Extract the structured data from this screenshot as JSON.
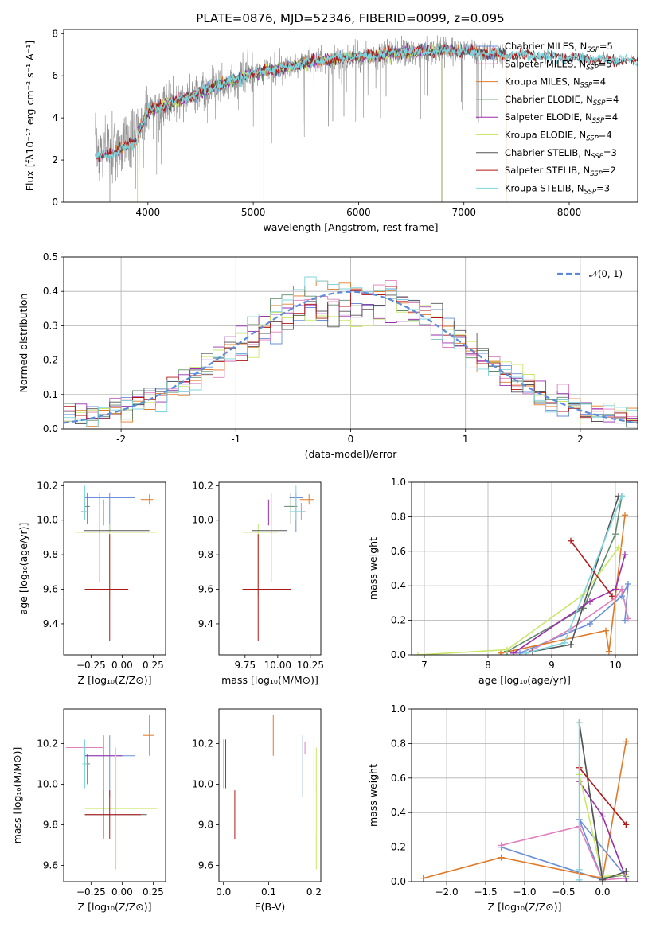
{
  "colors": {
    "Chabrier MILES": "#6a8fd8",
    "Salpeter MILES": "#e07fbe",
    "Kroupa MILES": "#e07a28",
    "Chabrier ELODIE": "#5f8a6a",
    "Salpeter ELODIE": "#9b2fae",
    "Kroupa ELODIE": "#c9e86a",
    "Chabrier STELIB": "#555555",
    "Salpeter STELIB": "#b01818",
    "Kroupa STELIB": "#7ed4dc",
    "data": "#8a8a8a",
    "normal": "#5b8bd8"
  },
  "chart_data": [
    {
      "id": "spectrum",
      "type": "line",
      "title": "PLATE=0876, MJD=52346, FIBERID=0099, z=0.095",
      "xlabel": "wavelength [Angstrom, rest frame]",
      "ylabel": "Flux [fλ10⁻¹⁷ erg cm⁻² s⁻¹ A⁻¹]",
      "xlim": [
        3200,
        8650
      ],
      "ylim": [
        0,
        8.2
      ],
      "xticks": [
        4000,
        5000,
        6000,
        7000,
        8000
      ],
      "yticks": [
        0,
        2,
        4,
        6,
        8
      ],
      "legend_position": "upper-right",
      "legend": [
        {
          "label": "Chabrier MILES, N",
          "sub": "SSP",
          "tail": "=5",
          "key": "Chabrier MILES"
        },
        {
          "label": "Salpeter MILES, N",
          "sub": "SSP",
          "tail": "=5",
          "key": "Salpeter MILES"
        },
        {
          "label": "Kroupa MILES, N",
          "sub": "SSP",
          "tail": "=4",
          "key": "Kroupa MILES"
        },
        {
          "label": "Chabrier ELODIE, N",
          "sub": "SSP",
          "tail": "=4",
          "key": "Chabrier ELODIE"
        },
        {
          "label": "Salpeter ELODIE, N",
          "sub": "SSP",
          "tail": "=4",
          "key": "Salpeter ELODIE"
        },
        {
          "label": "Kroupa ELODIE, N",
          "sub": "SSP",
          "tail": "=4",
          "key": "Kroupa ELODIE"
        },
        {
          "label": "Chabrier STELIB, N",
          "sub": "SSP",
          "tail": "=3",
          "key": "Chabrier STELIB"
        },
        {
          "label": "Salpeter STELIB, N",
          "sub": "SSP",
          "tail": "=2",
          "key": "Salpeter STELIB"
        },
        {
          "label": "Kroupa STELIB, N",
          "sub": "SSP",
          "tail": "=3",
          "key": "Kroupa STELIB"
        }
      ],
      "continuum_x": [
        3500,
        3700,
        3900,
        4000,
        4200,
        4400,
        4600,
        4800,
        5000,
        5200,
        5400,
        5600,
        5800,
        6000,
        6200,
        6400,
        6600,
        6800,
        7000,
        7200,
        7400,
        7600,
        7800,
        8000,
        8200,
        8400,
        8650
      ],
      "continuum_y": [
        2.4,
        2.7,
        3.2,
        4.3,
        4.7,
        5.0,
        5.4,
        5.8,
        6.1,
        6.3,
        6.5,
        6.7,
        6.8,
        6.9,
        7.0,
        7.1,
        7.15,
        7.2,
        7.2,
        7.1,
        7.0,
        7.0,
        6.9,
        6.85,
        6.8,
        6.75,
        6.7
      ],
      "data_range": [
        3500,
        7400
      ],
      "model_ranges": {
        "MILES": [
          3550,
          7400
        ],
        "ELODIE": [
          3900,
          6800
        ],
        "STELIB": [
          3500,
          8650
        ]
      }
    },
    {
      "id": "residuals",
      "type": "histogram",
      "xlabel": "(data-model)/error",
      "ylabel": "Normed distribution",
      "xlim": [
        -2.5,
        2.5
      ],
      "ylim": [
        0,
        0.5
      ],
      "xticks": [
        -2,
        -1,
        0,
        1,
        2
      ],
      "yticks": [
        0.0,
        0.1,
        0.2,
        0.3,
        0.4,
        0.5
      ],
      "grid": true,
      "legend_position": "upper-right",
      "legend": [
        {
          "label": "𝒩(0, 1)",
          "key": "normal"
        }
      ],
      "bin_width": 0.1
    },
    {
      "id": "age_vs_Z",
      "type": "errorbar",
      "xlabel": "Z [log₁₀(Z/Z⊙)]",
      "ylabel": "age  [log₁₀(age/yr)]",
      "xlim": [
        -0.47,
        0.35
      ],
      "ylim": [
        9.22,
        10.22
      ],
      "xticks": [
        -0.25,
        0.0,
        0.25
      ],
      "xticklabels": [
        "−0.25",
        "0.00",
        "0.25"
      ],
      "yticks": [
        9.4,
        9.6,
        9.8,
        10.0,
        10.2
      ],
      "points": [
        {
          "key": "Chabrier MILES",
          "x": -0.1,
          "xerr": [
            0.2,
            0.2
          ],
          "y": 10.13,
          "yerr": [
            0.2,
            0.03
          ]
        },
        {
          "key": "Salpeter MILES",
          "x": -0.3,
          "xerr": [
            0.03,
            0.03
          ],
          "y": 10.05,
          "yerr": [
            0.05,
            0.05
          ]
        },
        {
          "key": "Kroupa MILES",
          "x": 0.22,
          "xerr": [
            0.07,
            0.03
          ],
          "y": 10.12,
          "yerr": [
            0.03,
            0.03
          ]
        },
        {
          "key": "Chabrier ELODIE",
          "x": -0.28,
          "xerr": [
            0.02,
            0.02
          ],
          "y": 10.08,
          "yerr": [
            0.1,
            0.08
          ]
        },
        {
          "key": "Salpeter ELODIE",
          "x": -0.15,
          "xerr": [
            0.35,
            0.35
          ],
          "y": 10.07,
          "yerr": [
            0.1,
            0.05
          ]
        },
        {
          "key": "Kroupa ELODIE",
          "x": -0.1,
          "xerr": [
            0.28,
            0.38
          ],
          "y": 9.93,
          "yerr": [
            0.38,
            0.05
          ]
        },
        {
          "key": "Chabrier STELIB",
          "x": -0.18,
          "xerr": [
            0.13,
            0.4
          ],
          "y": 9.94,
          "yerr": [
            0.3,
            0.22
          ]
        },
        {
          "key": "Salpeter STELIB",
          "x": -0.1,
          "xerr": [
            0.2,
            0.15
          ],
          "y": 9.6,
          "yerr": [
            0.3,
            0.32
          ]
        },
        {
          "key": "Kroupa STELIB",
          "x": -0.3,
          "xerr": [
            0.02,
            0.02
          ],
          "y": 10.05,
          "yerr": [
            0.05,
            0.15
          ]
        }
      ]
    },
    {
      "id": "age_vs_mass",
      "type": "errorbar",
      "xlabel": "mass [log₁₀(M/M⊙)]",
      "xlim": [
        9.55,
        10.33
      ],
      "ylim": [
        9.22,
        10.22
      ],
      "xticks": [
        9.75,
        10.0,
        10.25
      ],
      "xticklabels": [
        "9.75",
        "10.00",
        "10.25"
      ],
      "yticks": [
        9.4,
        9.6,
        9.8,
        10.0,
        10.2
      ],
      "points": [
        {
          "key": "Chabrier MILES",
          "x": 10.14,
          "xerr": [
            0.05,
            0.05
          ],
          "y": 10.13,
          "yerr": [
            0.2,
            0.03
          ]
        },
        {
          "key": "Salpeter MILES",
          "x": 10.18,
          "xerr": [
            0.03,
            0.03
          ],
          "y": 10.05,
          "yerr": [
            0.05,
            0.05
          ]
        },
        {
          "key": "Kroupa MILES",
          "x": 10.24,
          "xerr": [
            0.07,
            0.04
          ],
          "y": 10.12,
          "yerr": [
            0.03,
            0.03
          ]
        },
        {
          "key": "Chabrier ELODIE",
          "x": 10.1,
          "xerr": [
            0.05,
            0.05
          ],
          "y": 10.08,
          "yerr": [
            0.1,
            0.08
          ]
        },
        {
          "key": "Salpeter ELODIE",
          "x": 9.93,
          "xerr": [
            0.15,
            0.22
          ],
          "y": 10.07,
          "yerr": [
            0.1,
            0.05
          ]
        },
        {
          "key": "Kroupa ELODIE",
          "x": 9.85,
          "xerr": [
            0.12,
            0.15
          ],
          "y": 9.93,
          "yerr": [
            0.38,
            0.05
          ]
        },
        {
          "key": "Chabrier STELIB",
          "x": 9.95,
          "xerr": [
            0.15,
            0.12
          ],
          "y": 9.94,
          "yerr": [
            0.3,
            0.22
          ]
        },
        {
          "key": "Salpeter STELIB",
          "x": 9.85,
          "xerr": [
            0.12,
            0.25
          ],
          "y": 9.6,
          "yerr": [
            0.3,
            0.32
          ]
        },
        {
          "key": "Kroupa STELIB",
          "x": 10.14,
          "xerr": [
            0.05,
            0.05
          ],
          "y": 10.05,
          "yerr": [
            0.05,
            0.15
          ]
        }
      ]
    },
    {
      "id": "mass_weight_vs_age",
      "type": "line",
      "xlabel": "age  [log₁₀(age/yr)]",
      "ylabel": "mass weight",
      "xlim": [
        6.8,
        10.35
      ],
      "ylim": [
        0,
        1
      ],
      "xticks": [
        7,
        8,
        9,
        10
      ],
      "yticks": [
        0.0,
        0.2,
        0.4,
        0.6,
        0.8,
        1.0
      ],
      "grid": true,
      "series": [
        {
          "key": "Chabrier MILES",
          "x": [
            8.5,
            9.6,
            10.1,
            10.2,
            10.15
          ],
          "y": [
            0.01,
            0.18,
            0.34,
            0.41,
            0.2
          ]
        },
        {
          "key": "Salpeter MILES",
          "x": [
            8.6,
            9.3,
            10.0,
            10.1,
            10.2
          ],
          "y": [
            0.01,
            0.15,
            0.33,
            0.38,
            0.21
          ]
        },
        {
          "key": "Kroupa MILES",
          "x": [
            8.2,
            9.85,
            9.9,
            10.15
          ],
          "y": [
            0.01,
            0.14,
            0.02,
            0.81
          ]
        },
        {
          "key": "Chabrier ELODIE",
          "x": [
            8.3,
            9.5,
            10.0,
            10.1
          ],
          "y": [
            0.02,
            0.27,
            0.7,
            0.92
          ]
        },
        {
          "key": "Salpeter ELODIE",
          "x": [
            8.4,
            9.6,
            10.0,
            10.15
          ],
          "y": [
            0.01,
            0.31,
            0.38,
            0.58
          ]
        },
        {
          "key": "Kroupa ELODIE",
          "x": [
            6.9,
            8.3,
            9.5,
            10.05
          ],
          "y": [
            0.0,
            0.03,
            0.35,
            0.62
          ]
        },
        {
          "key": "Chabrier STELIB",
          "x": [
            8.7,
            9.3,
            10.05
          ],
          "y": [
            0.02,
            0.06,
            0.92
          ]
        },
        {
          "key": "Salpeter STELIB",
          "x": [
            9.3,
            9.95
          ],
          "y": [
            0.66,
            0.34
          ]
        },
        {
          "key": "Kroupa STELIB",
          "x": [
            8.6,
            9.2,
            10.1
          ],
          "y": [
            0.01,
            0.07,
            0.92
          ]
        }
      ]
    },
    {
      "id": "mass_vs_Z",
      "type": "errorbar",
      "xlabel": "Z [log₁₀(Z/Z⊙)]",
      "ylabel": "mass [log₁₀(M/M⊙)]",
      "xlim": [
        -0.47,
        0.35
      ],
      "ylim": [
        9.52,
        10.37
      ],
      "xticks": [
        -0.25,
        0.0,
        0.25
      ],
      "xticklabels": [
        "−0.25",
        "0.00",
        "0.25"
      ],
      "yticks": [
        9.6,
        9.8,
        10.0,
        10.2
      ],
      "points": [
        {
          "key": "Chabrier MILES",
          "x": -0.1,
          "xerr": [
            0.2,
            0.2
          ],
          "y": 10.14,
          "yerr": [
            0.2,
            0.1
          ]
        },
        {
          "key": "Salpeter MILES",
          "x": -0.3,
          "xerr": [
            0.15,
            0.15
          ],
          "y": 10.18,
          "yerr": [
            0.03,
            0.03
          ]
        },
        {
          "key": "Kroupa MILES",
          "x": 0.22,
          "xerr": [
            0.05,
            0.04
          ],
          "y": 10.24,
          "yerr": [
            0.1,
            0.1
          ]
        },
        {
          "key": "Chabrier ELODIE",
          "x": -0.28,
          "xerr": [
            0.02,
            0.02
          ],
          "y": 10.1,
          "yerr": [
            0.1,
            0.05
          ]
        },
        {
          "key": "Salpeter ELODIE",
          "x": -0.15,
          "xerr": [
            0.15,
            0.15
          ],
          "y": 10.14,
          "yerr": [
            0.4,
            0.1
          ]
        },
        {
          "key": "Kroupa ELODIE",
          "x": -0.05,
          "xerr": [
            0.25,
            0.33
          ],
          "y": 9.88,
          "yerr": [
            0.3,
            0.3
          ]
        },
        {
          "key": "Chabrier STELIB",
          "x": -0.15,
          "xerr": [
            0.15,
            0.35
          ],
          "y": 9.85,
          "yerr": [
            0.12,
            0.12
          ]
        },
        {
          "key": "Salpeter STELIB",
          "x": -0.1,
          "xerr": [
            0.2,
            0.25
          ],
          "y": 9.85,
          "yerr": [
            0.12,
            0.12
          ]
        },
        {
          "key": "Kroupa STELIB",
          "x": -0.3,
          "xerr": [
            0.02,
            0.02
          ],
          "y": 10.1,
          "yerr": [
            0.12,
            0.12
          ]
        }
      ]
    },
    {
      "id": "mass_vs_EBV",
      "type": "errorbar",
      "xlabel": "E(B-V)",
      "xlim": [
        -0.01,
        0.215
      ],
      "ylim": [
        9.52,
        10.37
      ],
      "xticks": [
        0.0,
        0.1,
        0.2
      ],
      "xticklabels": [
        "0.0",
        "0.1",
        "0.2"
      ],
      "yticks": [
        9.6,
        9.8,
        10.0,
        10.2
      ],
      "points": [
        {
          "key": "Chabrier MILES",
          "x": 0.175,
          "y": 10.14,
          "yerr": [
            0.2,
            0.1
          ]
        },
        {
          "key": "Salpeter MILES",
          "x": 0.18,
          "y": 10.18,
          "yerr": [
            0.03,
            0.03
          ]
        },
        {
          "key": "Kroupa MILES",
          "x": 0.11,
          "y": 10.24,
          "yerr": [
            0.1,
            0.1
          ]
        },
        {
          "key": "Chabrier ELODIE",
          "x": 0.2,
          "y": 10.1,
          "yerr": [
            0.1,
            0.05
          ]
        },
        {
          "key": "Salpeter ELODIE",
          "x": 0.2,
          "y": 10.14,
          "yerr": [
            0.4,
            0.1
          ]
        },
        {
          "key": "Kroupa ELODIE",
          "x": 0.205,
          "y": 9.88,
          "yerr": [
            0.3,
            0.3
          ]
        },
        {
          "key": "Chabrier STELIB",
          "x": 0.005,
          "y": 10.1,
          "yerr": [
            0.12,
            0.12
          ]
        },
        {
          "key": "Salpeter STELIB",
          "x": 0.025,
          "y": 9.85,
          "yerr": [
            0.12,
            0.12
          ]
        },
        {
          "key": "Kroupa STELIB",
          "x": 0.0,
          "y": 10.1,
          "yerr": [
            0.12,
            0.12
          ]
        }
      ]
    },
    {
      "id": "mass_weight_vs_Z",
      "type": "line",
      "xlabel": "Z [log₁₀(Z/Z⊙)]",
      "ylabel": "mass weight",
      "xlim": [
        -2.45,
        0.45
      ],
      "ylim": [
        0,
        1
      ],
      "xticks": [
        -2.0,
        -1.5,
        -1.0,
        -0.5,
        0.0
      ],
      "xticklabels": [
        "−2.0",
        "−1.5",
        "−1.0",
        "−0.5",
        "0.0"
      ],
      "yticks": [
        0.0,
        0.2,
        0.4,
        0.6,
        0.8,
        1.0
      ],
      "grid": true,
      "series": [
        {
          "key": "Chabrier MILES",
          "x": [
            -1.3,
            0.0,
            -0.3,
            0.3
          ],
          "y": [
            0.2,
            0.01,
            0.36,
            0.03
          ]
        },
        {
          "key": "Salpeter MILES",
          "x": [
            -1.3,
            -0.3,
            0.0,
            0.3
          ],
          "y": [
            0.21,
            0.32,
            0.01,
            0.02
          ]
        },
        {
          "key": "Kroupa MILES",
          "x": [
            -2.3,
            -1.3,
            0.0,
            0.3
          ],
          "y": [
            0.02,
            0.14,
            0.02,
            0.81
          ]
        },
        {
          "key": "Chabrier ELODIE",
          "x": [
            -0.3,
            0.0,
            0.3
          ],
          "y": [
            0.92,
            0.02,
            0.04
          ]
        },
        {
          "key": "Salpeter ELODIE",
          "x": [
            -0.3,
            0.0,
            0.3
          ],
          "y": [
            0.58,
            0.38,
            0.02
          ]
        },
        {
          "key": "Kroupa ELODIE",
          "x": [
            -0.3,
            0.0,
            0.3
          ],
          "y": [
            0.62,
            0.03,
            0.04
          ]
        },
        {
          "key": "Chabrier STELIB",
          "x": [
            -0.3,
            0.0,
            0.3
          ],
          "y": [
            0.92,
            0.01,
            0.06
          ]
        },
        {
          "key": "Salpeter STELIB",
          "x": [
            -0.3,
            0.3
          ],
          "y": [
            0.66,
            0.33
          ]
        },
        {
          "key": "Kroupa STELIB",
          "x": [
            -0.3,
            -0.3,
            -0.3
          ],
          "y": [
            0.92,
            0.07,
            0.01
          ]
        }
      ]
    }
  ]
}
